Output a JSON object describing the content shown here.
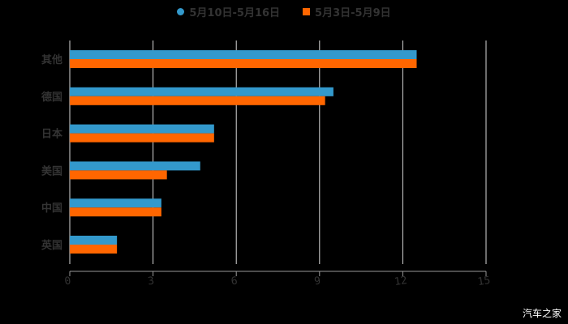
{
  "chart_data": {
    "type": "bar",
    "orientation": "horizontal",
    "title": "",
    "categories": [
      "其他",
      "德国",
      "日本",
      "美国",
      "中国",
      "英国"
    ],
    "series": [
      {
        "name": "5月10日-5月16日",
        "color": "#3399cc",
        "values": [
          12.5,
          9.5,
          5.2,
          4.7,
          3.3,
          1.7
        ]
      },
      {
        "name": "5月3日-5月9日",
        "color": "#ff6600",
        "values": [
          12.5,
          9.2,
          5.2,
          3.5,
          3.3,
          1.7
        ]
      }
    ],
    "xlabel": "",
    "ylabel": "",
    "xlim": [
      0,
      15
    ],
    "xticks": [
      "0",
      "3",
      "6",
      "9",
      "12",
      "15"
    ],
    "grid": true,
    "legend_position": "top"
  },
  "legend": {
    "items": [
      {
        "label": "5月10日-5月16日",
        "color": "#3399cc",
        "shape": "circle"
      },
      {
        "label": "5月3日-5月9日",
        "color": "#ff6600",
        "shape": "square"
      }
    ]
  },
  "watermark": "汽车之家"
}
